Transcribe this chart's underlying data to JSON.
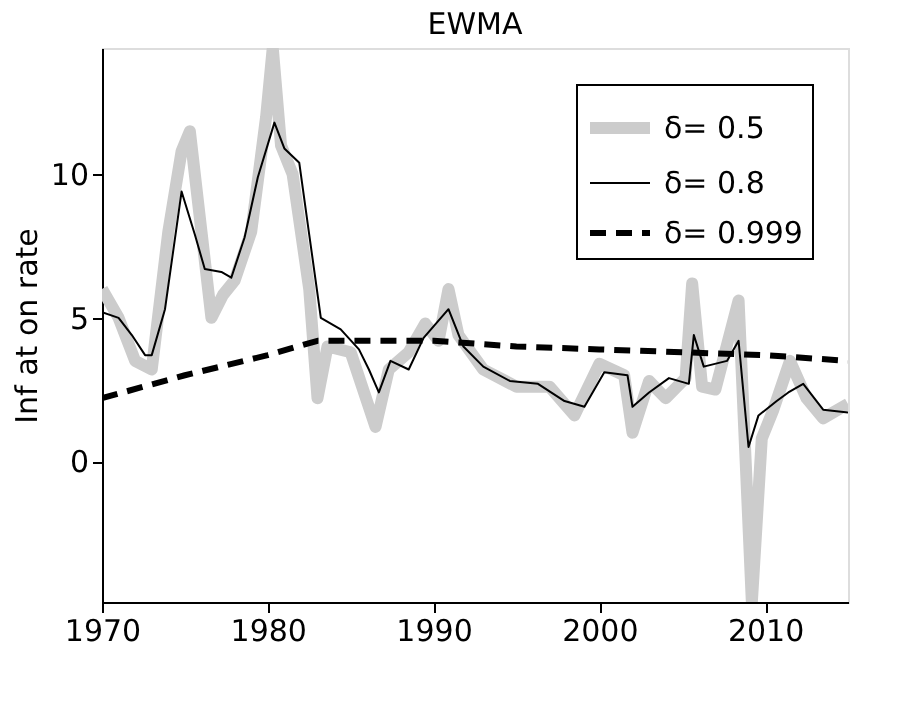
{
  "chart_data": {
    "type": "line",
    "title": "EWMA",
    "ylabel": "Inf at on rate",
    "xlim": [
      1970,
      2015
    ],
    "xticks": [
      1970,
      1980,
      1990,
      2000,
      2010
    ],
    "ylim": [
      -4.9,
      14.4
    ],
    "yticks": [
      0,
      5,
      10
    ],
    "grid": false,
    "legend": "top right",
    "marker": "none",
    "series": [
      {
        "name": "δ= 0.5",
        "color": "#cccccc",
        "line_style": "solid",
        "x": [
          1970,
          1971,
          1972,
          1973,
          1974,
          1974.8,
          1975.3,
          1976,
          1976.6,
          1977.3,
          1978,
          1979,
          1979.9,
          1980.3,
          1980.8,
          1981.5,
          1982.5,
          1983,
          1983.6,
          1985,
          1986.5,
          1987.3,
          1988.5,
          1989.5,
          1990.3,
          1990.9,
          1991.5,
          1993,
          1995,
          1997,
          1998.5,
          2000,
          2001.5,
          2002,
          2003,
          2004,
          2005.2,
          2005.6,
          2006.2,
          2007,
          2008.4,
          2009.2,
          2009.8,
          2010.5,
          2011.5,
          2012.5,
          2013.5,
          2015
        ],
        "values": [
          6.0,
          5.0,
          3.5,
          3.2,
          8.0,
          10.8,
          11.5,
          8.0,
          5.0,
          5.8,
          6.3,
          8.0,
          12.0,
          14.4,
          11.0,
          10.0,
          6.0,
          2.2,
          4.0,
          3.8,
          1.2,
          3.2,
          3.8,
          4.8,
          4.2,
          6.0,
          4.4,
          3.2,
          2.6,
          2.6,
          1.6,
          3.4,
          3.0,
          1.0,
          2.8,
          2.2,
          2.9,
          6.2,
          2.6,
          2.5,
          5.6,
          -4.9,
          0.8,
          1.8,
          3.5,
          2.2,
          1.5,
          2.0
        ]
      },
      {
        "name": "δ= 0.8",
        "color": "#000000",
        "line_style": "solid",
        "x": [
          1970,
          1971,
          1971.8,
          1972.6,
          1973,
          1973.8,
          1974.8,
          1975.6,
          1976.2,
          1977.2,
          1977.8,
          1978.6,
          1979.4,
          1980.4,
          1981,
          1981.9,
          1982.5,
          1983.2,
          1984.4,
          1985.5,
          1986.1,
          1986.7,
          1987.4,
          1988.5,
          1989.4,
          1990.9,
          1991.8,
          1993,
          1994.6,
          1996.3,
          1997.9,
          1999.1,
          2000.3,
          2001.7,
          2002,
          2003,
          2004.2,
          2005.4,
          2005.7,
          2006.3,
          2007.7,
          2008.4,
          2009,
          2009.6,
          2010.7,
          2011.4,
          2012.3,
          2013.5,
          2015
        ],
        "values": [
          5.2,
          5.0,
          4.4,
          3.7,
          3.7,
          5.3,
          9.4,
          7.9,
          6.7,
          6.6,
          6.4,
          7.8,
          9.9,
          11.8,
          10.9,
          10.4,
          7.9,
          5.0,
          4.6,
          3.9,
          3.2,
          2.4,
          3.5,
          3.2,
          4.3,
          5.3,
          4.0,
          3.3,
          2.8,
          2.7,
          2.1,
          1.9,
          3.1,
          3.0,
          1.9,
          2.4,
          2.9,
          2.7,
          4.4,
          3.3,
          3.5,
          4.2,
          0.5,
          1.6,
          2.1,
          2.4,
          2.7,
          1.8,
          1.7
        ]
      },
      {
        "name": "δ= 0.999",
        "color": "#000000",
        "line_style": "dashed",
        "x": [
          1970,
          1975,
          1980,
          1983,
          1990,
          1995,
          2000,
          2005,
          2010,
          2015
        ],
        "values": [
          2.2,
          3.0,
          3.7,
          4.2,
          4.2,
          4.0,
          3.9,
          3.8,
          3.7,
          3.5
        ]
      }
    ]
  }
}
